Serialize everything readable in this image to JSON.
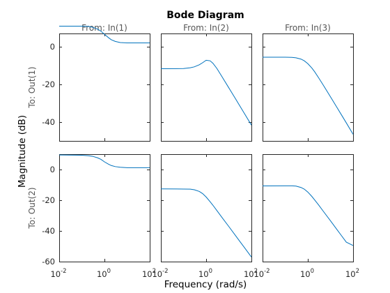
{
  "chart_data": {
    "type": "line",
    "title": "Bode Diagram",
    "xlabel": "Frequency  (rad/s)",
    "ylabel": "Magnitude (dB)",
    "xscale": "log",
    "xlim": [
      0.01,
      100
    ],
    "x_tick_values": [
      0.01,
      1,
      100
    ],
    "x_tick_labels": [
      {
        "base": "10",
        "exp": "-2"
      },
      {
        "base": "10",
        "exp": "0"
      },
      {
        "base": "10",
        "exp": "2"
      }
    ],
    "input_labels": [
      "From: In(1)",
      "From: In(2)",
      "From: In(3)"
    ],
    "output_labels": [
      "To: Out(1)",
      "To: Out(2)"
    ],
    "rows": [
      {
        "ylim": [
          -50,
          7
        ],
        "yticks": [
          0,
          -20,
          -40
        ],
        "ytick_labels": [
          "0",
          "-20",
          "-40"
        ]
      },
      {
        "ylim": [
          -60,
          10
        ],
        "yticks": [
          0,
          -20,
          -40,
          -60
        ],
        "ytick_labels": [
          "0",
          "-20",
          "-40",
          "-60"
        ]
      }
    ],
    "grid": false,
    "line_color": "#0072BD",
    "series": [
      {
        "row": 0,
        "col": 0,
        "x": [
          0.01,
          0.1,
          0.2,
          0.3,
          0.5,
          0.7,
          1,
          1.5,
          2,
          3,
          5,
          10,
          20,
          100
        ],
        "y": [
          10.9,
          10.9,
          10.7,
          10.3,
          9.3,
          8.2,
          6.6,
          4.8,
          3.7,
          2.8,
          2.2,
          2.0,
          2.0,
          2.0
        ]
      },
      {
        "row": 0,
        "col": 1,
        "x": [
          0.01,
          0.1,
          0.2,
          0.3,
          0.5,
          0.7,
          1,
          1.5,
          2,
          3,
          5,
          10,
          20,
          30,
          50,
          100
        ],
        "y": [
          -11.7,
          -11.6,
          -11.2,
          -10.7,
          -9.6,
          -8.5,
          -7.2,
          -7.5,
          -8.8,
          -11.6,
          -15.9,
          -21.8,
          -27.7,
          -31.2,
          -35.6,
          -41.6
        ]
      },
      {
        "row": 0,
        "col": 2,
        "x": [
          0.01,
          0.1,
          0.2,
          0.3,
          0.5,
          0.7,
          1,
          1.5,
          2,
          3,
          5,
          10,
          20,
          30,
          50,
          100
        ],
        "y": [
          -5.6,
          -5.6,
          -5.7,
          -5.9,
          -6.6,
          -7.5,
          -9.0,
          -11.3,
          -13.3,
          -16.5,
          -20.7,
          -26.6,
          -32.5,
          -36.0,
          -40.4,
          -46.5
        ]
      },
      {
        "row": 1,
        "col": 0,
        "x": [
          0.01,
          0.1,
          0.2,
          0.3,
          0.5,
          0.7,
          1,
          1.5,
          2,
          3,
          5,
          10,
          20,
          100
        ],
        "y": [
          9.5,
          9.3,
          9.0,
          8.6,
          7.6,
          6.6,
          5.0,
          3.5,
          2.6,
          1.9,
          1.5,
          1.2,
          1.2,
          1.2
        ]
      },
      {
        "row": 1,
        "col": 1,
        "x": [
          0.01,
          0.1,
          0.2,
          0.3,
          0.5,
          0.7,
          1,
          1.5,
          2,
          3,
          5,
          10,
          20,
          30,
          50,
          100
        ],
        "y": [
          -12.6,
          -12.7,
          -12.8,
          -13.2,
          -14.3,
          -15.7,
          -17.9,
          -21.0,
          -23.3,
          -26.8,
          -31.2,
          -37.1,
          -43.1,
          -46.6,
          -51.0,
          -57.0
        ]
      },
      {
        "row": 1,
        "col": 2,
        "x": [
          0.01,
          0.1,
          0.2,
          0.3,
          0.5,
          0.7,
          1,
          1.5,
          2,
          3,
          5,
          10,
          20,
          30,
          50,
          100
        ],
        "y": [
          -10.7,
          -10.6,
          -10.6,
          -10.8,
          -11.7,
          -12.8,
          -14.7,
          -17.5,
          -19.8,
          -23.1,
          -27.5,
          -33.4,
          -39.4,
          -42.9,
          -47.3,
          -49.5
        ]
      }
    ]
  }
}
